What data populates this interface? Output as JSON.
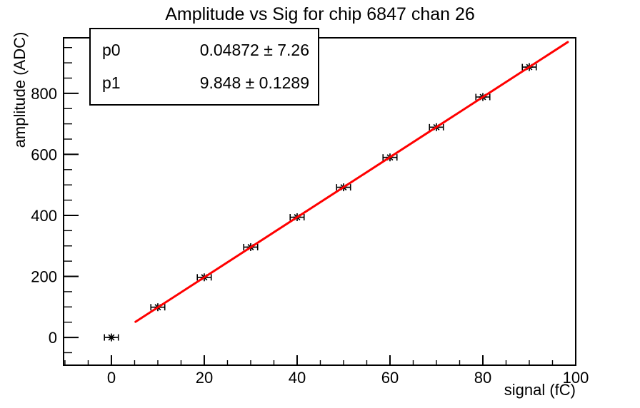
{
  "page": {
    "background": "#ffffff",
    "foreground": "#000000"
  },
  "chart_data": {
    "type": "scatter",
    "title": "Amplitude vs Sig for chip 6847 chan 26",
    "xlabel": "signal (fC)",
    "ylabel": "amplitude (ADC)",
    "xlim": [
      -10.3,
      100
    ],
    "ylim": [
      -91,
      982
    ],
    "grid": false,
    "legend": "none",
    "axis_color": "#000000",
    "xticks": {
      "start": 0,
      "end": 100,
      "major": 20,
      "minor": 5,
      "labels": [
        "0",
        "20",
        "40",
        "60",
        "80",
        "100"
      ]
    },
    "yticks": {
      "start": 0,
      "end": 800,
      "major": 200,
      "minor": 50,
      "labels": [
        "0",
        "200",
        "400",
        "600",
        "800"
      ]
    },
    "marker": "star",
    "marker_color": "#000000",
    "points": {
      "x": [
        0,
        10,
        20,
        30,
        40,
        50,
        60,
        70,
        80,
        90
      ],
      "y": [
        0,
        99,
        197,
        296,
        394,
        492,
        590,
        689,
        788,
        886
      ],
      "xerr": 1.5
    },
    "fit": {
      "type": "linear",
      "p0": 0.04872,
      "p1": 9.848,
      "p0_err": 7.26,
      "p1_err": 0.1289,
      "x_range": [
        5.2,
        98.3
      ],
      "color": "#ff0000",
      "line_width": 3
    }
  },
  "stats_box": {
    "rows": [
      {
        "name": "p0",
        "value": "0.04872 ± 7.26"
      },
      {
        "name": "p1",
        "value": "9.848 ± 0.1289"
      }
    ]
  }
}
